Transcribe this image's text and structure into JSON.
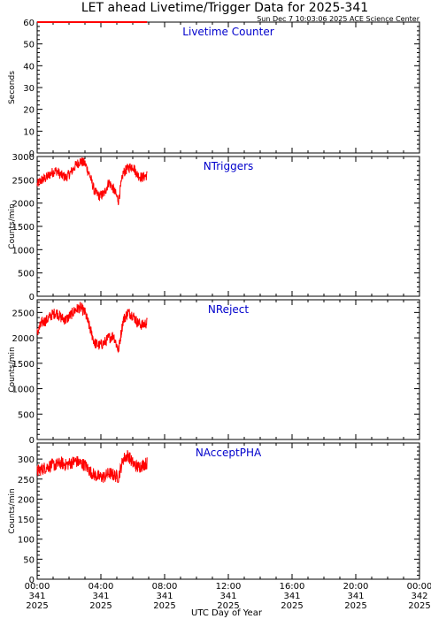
{
  "header": {
    "title": "LET ahead Livetime/Trigger Data for 2025-341",
    "timestamp": "Sun Dec  7 10:03:06 2025 ACE Science Center"
  },
  "colors": {
    "series": "#ff0000",
    "panel_label": "#0000cc",
    "axis": "#000000"
  },
  "chart_data": [
    {
      "type": "line",
      "panel_label": "Livetime Counter",
      "ylabel": "Seconds",
      "ylim": [
        0,
        60
      ],
      "yticks": [
        0,
        10,
        20,
        30,
        40,
        50,
        60
      ],
      "series": [
        {
          "x_hours": [
            0,
            6.9
          ],
          "values": [
            60,
            60
          ]
        }
      ]
    },
    {
      "type": "line",
      "panel_label": "NTriggers",
      "ylabel": "Counts/min",
      "ylim": [
        0,
        3000
      ],
      "yticks": [
        0,
        500,
        1000,
        1500,
        2000,
        2500,
        3000
      ],
      "series": [
        {
          "x_hours": [
            0.0,
            0.3,
            0.6,
            0.9,
            1.2,
            1.5,
            1.8,
            2.1,
            2.4,
            2.7,
            3.0,
            3.3,
            3.6,
            3.9,
            4.2,
            4.5,
            4.8,
            5.1,
            5.4,
            5.7,
            6.0,
            6.3,
            6.6,
            6.9
          ],
          "values": [
            2400,
            2500,
            2550,
            2650,
            2700,
            2600,
            2550,
            2650,
            2800,
            2900,
            2850,
            2600,
            2250,
            2150,
            2200,
            2450,
            2300,
            2050,
            2650,
            2750,
            2800,
            2600,
            2550,
            2600
          ],
          "noise": 110
        }
      ]
    },
    {
      "type": "line",
      "panel_label": "NReject",
      "ylabel": "Counts/min",
      "ylim": [
        0,
        2750
      ],
      "yticks": [
        0,
        500,
        1000,
        1500,
        2000,
        2500
      ],
      "series": [
        {
          "x_hours": [
            0.0,
            0.3,
            0.6,
            0.9,
            1.2,
            1.5,
            1.8,
            2.1,
            2.4,
            2.7,
            3.0,
            3.3,
            3.6,
            3.9,
            4.2,
            4.5,
            4.8,
            5.1,
            5.4,
            5.7,
            6.0,
            6.3,
            6.6,
            6.9
          ],
          "values": [
            2100,
            2300,
            2350,
            2450,
            2500,
            2400,
            2350,
            2450,
            2550,
            2600,
            2500,
            2200,
            1900,
            1850,
            1900,
            2000,
            2050,
            1750,
            2350,
            2500,
            2450,
            2300,
            2250,
            2300
          ],
          "noise": 110
        }
      ]
    },
    {
      "type": "line",
      "panel_label": "NAcceptPHA",
      "ylabel": "Counts/min",
      "ylim": [
        0,
        340
      ],
      "yticks": [
        0,
        50,
        100,
        150,
        200,
        250,
        300
      ],
      "series": [
        {
          "x_hours": [
            0.0,
            0.3,
            0.6,
            0.9,
            1.2,
            1.5,
            1.8,
            2.1,
            2.4,
            2.7,
            3.0,
            3.3,
            3.6,
            3.9,
            4.2,
            4.5,
            4.8,
            5.1,
            5.4,
            5.7,
            6.0,
            6.3,
            6.6,
            6.9
          ],
          "values": [
            270,
            275,
            280,
            285,
            285,
            290,
            285,
            290,
            295,
            290,
            285,
            270,
            260,
            255,
            255,
            265,
            260,
            255,
            300,
            310,
            290,
            280,
            285,
            290
          ],
          "noise": 16
        }
      ]
    }
  ],
  "xaxis": {
    "label": "UTC Day of Year",
    "range_hours": [
      0,
      24
    ],
    "ticks": [
      {
        "h": 0,
        "time": "00:00",
        "doy": "341",
        "year": "2025"
      },
      {
        "h": 4,
        "time": "04:00",
        "doy": "341",
        "year": "2025"
      },
      {
        "h": 8,
        "time": "08:00",
        "doy": "341",
        "year": "2025"
      },
      {
        "h": 12,
        "time": "12:00",
        "doy": "341",
        "year": "2025"
      },
      {
        "h": 16,
        "time": "16:00",
        "doy": "341",
        "year": "2025"
      },
      {
        "h": 20,
        "time": "20:00",
        "doy": "341",
        "year": "2025"
      },
      {
        "h": 24,
        "time": "00:00",
        "doy": "342",
        "year": "2025"
      }
    ]
  }
}
